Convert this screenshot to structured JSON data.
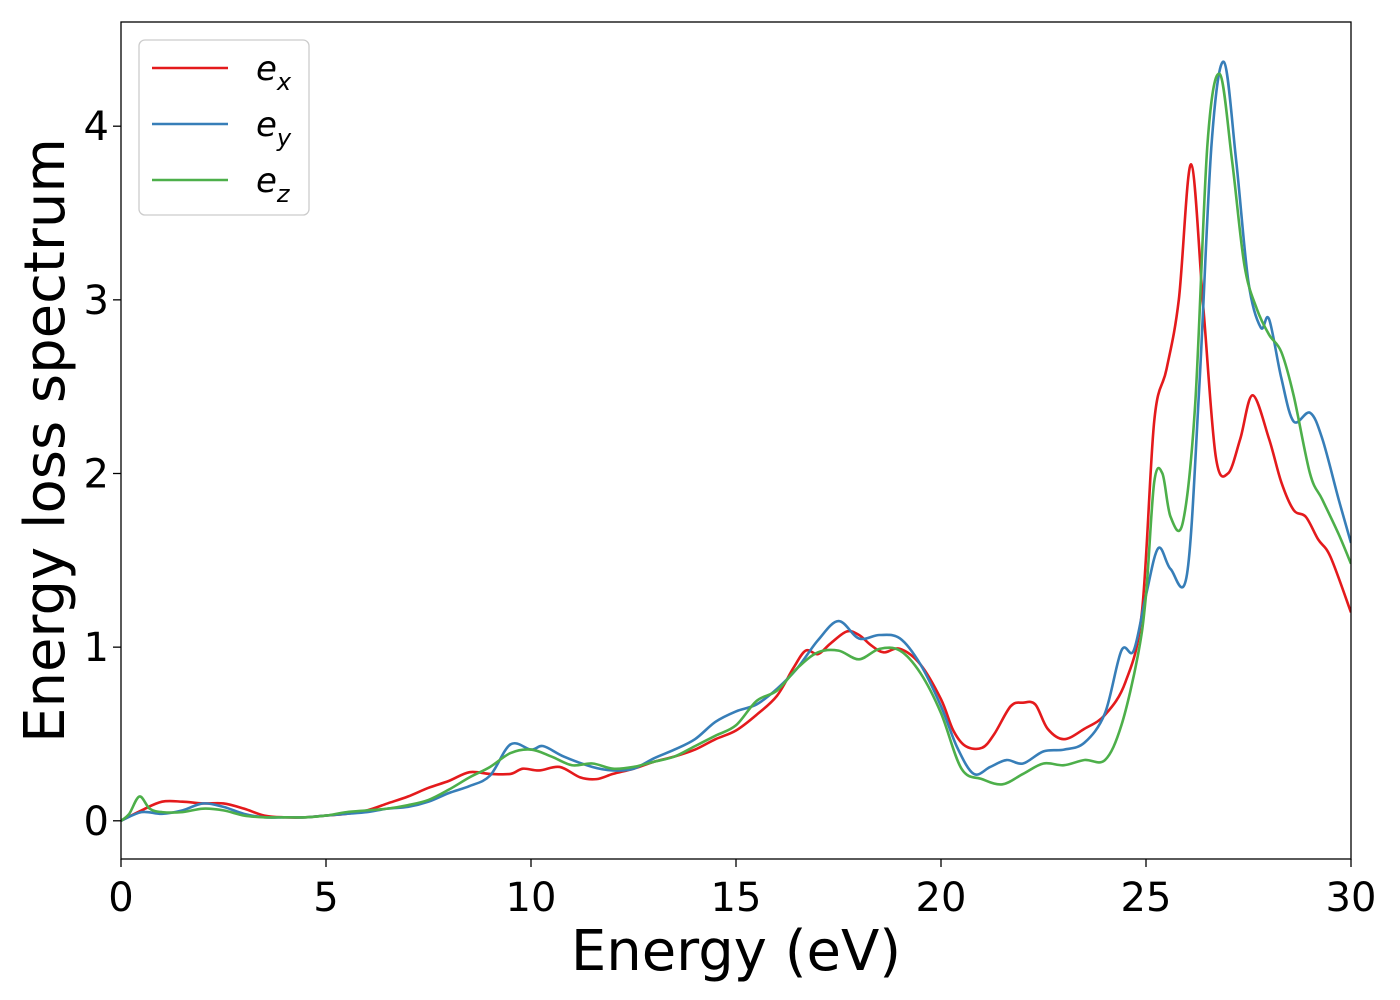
{
  "chart_data": {
    "type": "line",
    "title": "",
    "xlabel": "Energy (eV)",
    "ylabel": "Energy loss spectrum",
    "xlim": [
      0,
      30
    ],
    "ylim": [
      -0.22,
      4.6
    ],
    "xticks": [
      0,
      5,
      10,
      15,
      20,
      25,
      30
    ],
    "yticks": [
      0,
      1,
      2,
      3,
      4
    ],
    "xtick_labels": [
      "0",
      "5",
      "10",
      "15",
      "20",
      "25",
      "30"
    ],
    "ytick_labels": [
      "0",
      "1",
      "2",
      "3",
      "4"
    ],
    "grid": false,
    "legend_position": "top-left",
    "series": [
      {
        "name": "e_x",
        "legend_base": "e",
        "legend_sub": "x",
        "color": "#e41a1c",
        "points": [
          [
            0,
            0
          ],
          [
            0.5,
            0.06
          ],
          [
            1,
            0.11
          ],
          [
            1.5,
            0.11
          ],
          [
            2,
            0.1
          ],
          [
            2.5,
            0.1
          ],
          [
            3,
            0.07
          ],
          [
            3.5,
            0.03
          ],
          [
            4,
            0.02
          ],
          [
            4.5,
            0.02
          ],
          [
            5,
            0.03
          ],
          [
            5.5,
            0.04
          ],
          [
            6,
            0.06
          ],
          [
            6.5,
            0.1
          ],
          [
            7,
            0.14
          ],
          [
            7.5,
            0.19
          ],
          [
            8,
            0.23
          ],
          [
            8.5,
            0.28
          ],
          [
            9,
            0.27
          ],
          [
            9.5,
            0.27
          ],
          [
            9.8,
            0.3
          ],
          [
            10.2,
            0.29
          ],
          [
            10.7,
            0.31
          ],
          [
            11.2,
            0.25
          ],
          [
            11.6,
            0.24
          ],
          [
            12,
            0.27
          ],
          [
            12.5,
            0.3
          ],
          [
            13,
            0.34
          ],
          [
            13.5,
            0.37
          ],
          [
            14,
            0.41
          ],
          [
            14.5,
            0.47
          ],
          [
            15,
            0.52
          ],
          [
            15.5,
            0.61
          ],
          [
            16,
            0.72
          ],
          [
            16.4,
            0.88
          ],
          [
            16.7,
            0.98
          ],
          [
            17,
            0.96
          ],
          [
            17.3,
            1.02
          ],
          [
            17.7,
            1.09
          ],
          [
            18,
            1.07
          ],
          [
            18.3,
            1.01
          ],
          [
            18.6,
            0.97
          ],
          [
            19,
            0.99
          ],
          [
            19.5,
            0.9
          ],
          [
            20,
            0.7
          ],
          [
            20.3,
            0.52
          ],
          [
            20.6,
            0.43
          ],
          [
            21,
            0.42
          ],
          [
            21.3,
            0.5
          ],
          [
            21.7,
            0.66
          ],
          [
            22,
            0.68
          ],
          [
            22.3,
            0.67
          ],
          [
            22.6,
            0.53
          ],
          [
            23,
            0.47
          ],
          [
            23.5,
            0.53
          ],
          [
            24,
            0.61
          ],
          [
            24.5,
            0.8
          ],
          [
            24.9,
            1.2
          ],
          [
            25.2,
            2.3
          ],
          [
            25.5,
            2.6
          ],
          [
            25.8,
            3.0
          ],
          [
            26.1,
            3.78
          ],
          [
            26.4,
            2.95
          ],
          [
            26.7,
            2.1
          ],
          [
            27,
            2.0
          ],
          [
            27.3,
            2.2
          ],
          [
            27.6,
            2.45
          ],
          [
            28,
            2.2
          ],
          [
            28.3,
            1.95
          ],
          [
            28.6,
            1.79
          ],
          [
            28.9,
            1.75
          ],
          [
            29.2,
            1.62
          ],
          [
            29.5,
            1.52
          ],
          [
            30,
            1.2
          ]
        ]
      },
      {
        "name": "e_y",
        "legend_base": "e",
        "legend_sub": "y",
        "color": "#377eb8",
        "points": [
          [
            0,
            0
          ],
          [
            0.5,
            0.05
          ],
          [
            1,
            0.04
          ],
          [
            1.5,
            0.06
          ],
          [
            2,
            0.1
          ],
          [
            2.5,
            0.08
          ],
          [
            3,
            0.04
          ],
          [
            3.5,
            0.02
          ],
          [
            4,
            0.02
          ],
          [
            4.5,
            0.02
          ],
          [
            5,
            0.03
          ],
          [
            5.5,
            0.04
          ],
          [
            6,
            0.05
          ],
          [
            6.5,
            0.07
          ],
          [
            7,
            0.08
          ],
          [
            7.5,
            0.11
          ],
          [
            8,
            0.16
          ],
          [
            8.5,
            0.2
          ],
          [
            9,
            0.26
          ],
          [
            9.5,
            0.44
          ],
          [
            10,
            0.41
          ],
          [
            10.3,
            0.43
          ],
          [
            10.8,
            0.37
          ],
          [
            11.5,
            0.31
          ],
          [
            12,
            0.29
          ],
          [
            12.5,
            0.3
          ],
          [
            13,
            0.36
          ],
          [
            13.5,
            0.41
          ],
          [
            14,
            0.47
          ],
          [
            14.5,
            0.57
          ],
          [
            15,
            0.63
          ],
          [
            15.5,
            0.67
          ],
          [
            16,
            0.76
          ],
          [
            16.5,
            0.88
          ],
          [
            17,
            1.04
          ],
          [
            17.5,
            1.15
          ],
          [
            18,
            1.05
          ],
          [
            18.5,
            1.07
          ],
          [
            19,
            1.05
          ],
          [
            19.5,
            0.9
          ],
          [
            20,
            0.66
          ],
          [
            20.4,
            0.42
          ],
          [
            20.8,
            0.27
          ],
          [
            21.2,
            0.31
          ],
          [
            21.6,
            0.35
          ],
          [
            22,
            0.33
          ],
          [
            22.5,
            0.4
          ],
          [
            23,
            0.41
          ],
          [
            23.5,
            0.45
          ],
          [
            24,
            0.62
          ],
          [
            24.4,
            0.98
          ],
          [
            24.7,
            0.98
          ],
          [
            25,
            1.3
          ],
          [
            25.3,
            1.57
          ],
          [
            25.6,
            1.45
          ],
          [
            26,
            1.42
          ],
          [
            26.3,
            2.5
          ],
          [
            26.6,
            3.9
          ],
          [
            26.9,
            4.37
          ],
          [
            27.2,
            3.8
          ],
          [
            27.5,
            3.1
          ],
          [
            27.8,
            2.84
          ],
          [
            28,
            2.89
          ],
          [
            28.3,
            2.55
          ],
          [
            28.6,
            2.3
          ],
          [
            29,
            2.35
          ],
          [
            29.3,
            2.2
          ],
          [
            29.7,
            1.85
          ],
          [
            30,
            1.6
          ]
        ]
      },
      {
        "name": "e_z",
        "legend_base": "e",
        "legend_sub": "z",
        "color": "#4daf4a",
        "points": [
          [
            0,
            0
          ],
          [
            0.2,
            0.04
          ],
          [
            0.45,
            0.14
          ],
          [
            0.7,
            0.07
          ],
          [
            1,
            0.05
          ],
          [
            1.5,
            0.05
          ],
          [
            2,
            0.07
          ],
          [
            2.5,
            0.06
          ],
          [
            3,
            0.03
          ],
          [
            3.5,
            0.02
          ],
          [
            4,
            0.02
          ],
          [
            4.5,
            0.02
          ],
          [
            5,
            0.03
          ],
          [
            5.5,
            0.05
          ],
          [
            6,
            0.06
          ],
          [
            6.5,
            0.07
          ],
          [
            7,
            0.09
          ],
          [
            7.5,
            0.12
          ],
          [
            8,
            0.18
          ],
          [
            8.5,
            0.25
          ],
          [
            9,
            0.31
          ],
          [
            9.5,
            0.39
          ],
          [
            10,
            0.41
          ],
          [
            10.5,
            0.37
          ],
          [
            11,
            0.32
          ],
          [
            11.5,
            0.33
          ],
          [
            12,
            0.3
          ],
          [
            12.5,
            0.31
          ],
          [
            13,
            0.34
          ],
          [
            13.5,
            0.37
          ],
          [
            14,
            0.43
          ],
          [
            14.5,
            0.49
          ],
          [
            15,
            0.55
          ],
          [
            15.5,
            0.69
          ],
          [
            16,
            0.75
          ],
          [
            16.5,
            0.88
          ],
          [
            17,
            0.97
          ],
          [
            17.5,
            0.98
          ],
          [
            18,
            0.93
          ],
          [
            18.5,
            0.99
          ],
          [
            19,
            0.98
          ],
          [
            19.5,
            0.85
          ],
          [
            20,
            0.62
          ],
          [
            20.5,
            0.3
          ],
          [
            21,
            0.24
          ],
          [
            21.5,
            0.21
          ],
          [
            22,
            0.27
          ],
          [
            22.5,
            0.33
          ],
          [
            23,
            0.32
          ],
          [
            23.5,
            0.35
          ],
          [
            24,
            0.35
          ],
          [
            24.4,
            0.55
          ],
          [
            24.8,
            0.95
          ],
          [
            25,
            1.3
          ],
          [
            25.2,
            1.95
          ],
          [
            25.4,
            2.0
          ],
          [
            25.6,
            1.75
          ],
          [
            25.9,
            1.72
          ],
          [
            26.2,
            2.4
          ],
          [
            26.5,
            3.9
          ],
          [
            26.8,
            4.3
          ],
          [
            27.1,
            3.8
          ],
          [
            27.4,
            3.2
          ],
          [
            27.7,
            2.95
          ],
          [
            28,
            2.8
          ],
          [
            28.3,
            2.7
          ],
          [
            28.6,
            2.45
          ],
          [
            29,
            2.0
          ],
          [
            29.3,
            1.85
          ],
          [
            29.7,
            1.65
          ],
          [
            30,
            1.48
          ]
        ]
      }
    ]
  }
}
